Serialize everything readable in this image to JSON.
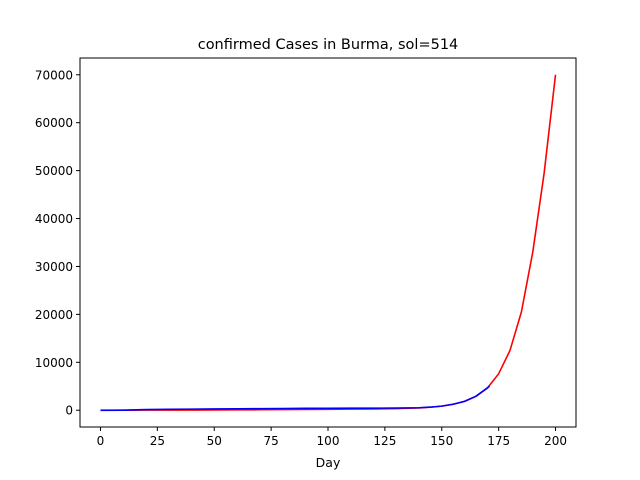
{
  "chart_data": {
    "type": "line",
    "title": "confirmed Cases in Burma, sol=514",
    "xlabel": "Day",
    "ylabel": "",
    "xlim": [
      -9,
      209
    ],
    "ylim": [
      -3500,
      73500
    ],
    "xticks": [
      0,
      25,
      50,
      75,
      100,
      125,
      150,
      175,
      200
    ],
    "yticks": [
      0,
      10000,
      20000,
      30000,
      40000,
      50000,
      60000,
      70000
    ],
    "grid": false,
    "legend": "none",
    "series": [
      {
        "color": "#ff0000",
        "x": [
          0,
          10,
          20,
          30,
          40,
          50,
          60,
          70,
          80,
          90,
          100,
          110,
          120,
          130,
          140,
          145,
          150,
          155,
          160,
          165,
          170,
          175,
          180,
          185,
          190,
          195,
          200
        ],
        "y": [
          0,
          10,
          20,
          30,
          40,
          60,
          80,
          100,
          130,
          160,
          190,
          230,
          280,
          340,
          480,
          620,
          860,
          1250,
          1850,
          2900,
          4600,
          7600,
          12500,
          20500,
          33000,
          49500,
          70000
        ]
      },
      {
        "color": "#0000ff",
        "x": [
          0,
          10,
          20,
          30,
          40,
          50,
          60,
          70,
          80,
          90,
          100,
          110,
          120,
          130,
          140,
          145,
          150,
          155,
          160,
          165,
          171
        ],
        "y": [
          -30,
          10,
          140,
          190,
          230,
          260,
          290,
          320,
          360,
          390,
          410,
          420,
          430,
          450,
          520,
          650,
          860,
          1250,
          1850,
          2900,
          5000
        ]
      }
    ]
  }
}
